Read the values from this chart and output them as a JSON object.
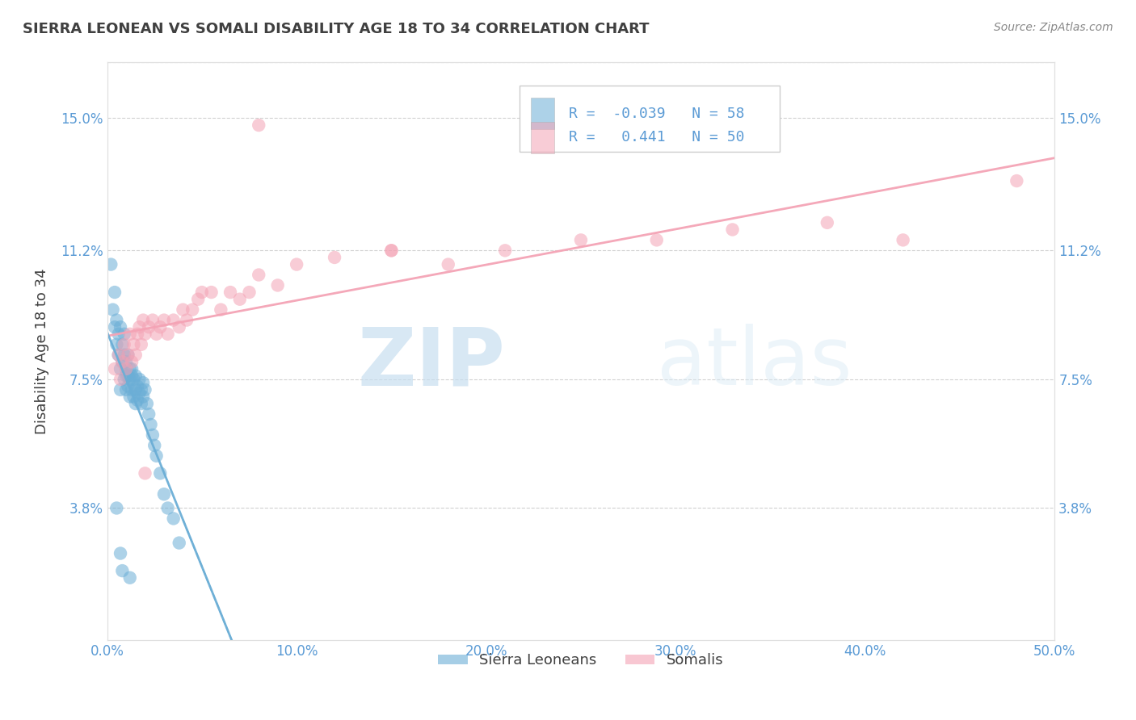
{
  "title": "SIERRA LEONEAN VS SOMALI DISABILITY AGE 18 TO 34 CORRELATION CHART",
  "source_text": "Source: ZipAtlas.com",
  "ylabel": "Disability Age 18 to 34",
  "xlim": [
    0.0,
    0.5
  ],
  "ylim": [
    0.0,
    0.166
  ],
  "xticks": [
    0.0,
    0.1,
    0.2,
    0.3,
    0.4,
    0.5
  ],
  "xticklabels": [
    "0.0%",
    "10.0%",
    "20.0%",
    "30.0%",
    "40.0%",
    "50.0%"
  ],
  "ytick_positions": [
    0.038,
    0.075,
    0.112,
    0.15
  ],
  "ytick_labels": [
    "3.8%",
    "7.5%",
    "11.2%",
    "15.0%"
  ],
  "sierra_R": -0.039,
  "sierra_N": 58,
  "somali_R": 0.441,
  "somali_N": 50,
  "sierra_color": "#6baed6",
  "somali_color": "#f4a3b5",
  "legend_label_sierra": "Sierra Leoneans",
  "legend_label_somali": "Somalis",
  "watermark_zip": "ZIP",
  "watermark_atlas": "atlas",
  "background_color": "#ffffff",
  "grid_color": "#cccccc",
  "title_color": "#404040",
  "axis_label_color": "#404040",
  "tick_label_color": "#5b9bd5",
  "sierra_x": [
    0.002,
    0.003,
    0.004,
    0.004,
    0.005,
    0.005,
    0.006,
    0.006,
    0.007,
    0.007,
    0.007,
    0.008,
    0.008,
    0.009,
    0.009,
    0.009,
    0.01,
    0.01,
    0.01,
    0.01,
    0.011,
    0.011,
    0.011,
    0.012,
    0.012,
    0.012,
    0.013,
    0.013,
    0.013,
    0.014,
    0.014,
    0.015,
    0.015,
    0.015,
    0.016,
    0.016,
    0.017,
    0.017,
    0.018,
    0.018,
    0.019,
    0.019,
    0.02,
    0.021,
    0.022,
    0.023,
    0.024,
    0.025,
    0.026,
    0.028,
    0.03,
    0.032,
    0.035,
    0.038,
    0.005,
    0.007,
    0.008,
    0.012
  ],
  "sierra_y": [
    0.108,
    0.095,
    0.1,
    0.09,
    0.092,
    0.085,
    0.088,
    0.082,
    0.09,
    0.078,
    0.072,
    0.085,
    0.08,
    0.088,
    0.082,
    0.075,
    0.08,
    0.076,
    0.072,
    0.078,
    0.076,
    0.082,
    0.073,
    0.078,
    0.075,
    0.07,
    0.076,
    0.072,
    0.078,
    0.075,
    0.07,
    0.076,
    0.072,
    0.068,
    0.073,
    0.069,
    0.071,
    0.075,
    0.072,
    0.068,
    0.07,
    0.074,
    0.072,
    0.068,
    0.065,
    0.062,
    0.059,
    0.056,
    0.053,
    0.048,
    0.042,
    0.038,
    0.035,
    0.028,
    0.038,
    0.025,
    0.02,
    0.018
  ],
  "somali_x": [
    0.004,
    0.006,
    0.007,
    0.008,
    0.009,
    0.01,
    0.011,
    0.012,
    0.013,
    0.014,
    0.015,
    0.016,
    0.017,
    0.018,
    0.019,
    0.02,
    0.022,
    0.024,
    0.026,
    0.028,
    0.03,
    0.032,
    0.035,
    0.038,
    0.04,
    0.042,
    0.045,
    0.048,
    0.05,
    0.055,
    0.06,
    0.065,
    0.07,
    0.075,
    0.08,
    0.09,
    0.1,
    0.12,
    0.15,
    0.18,
    0.21,
    0.25,
    0.29,
    0.33,
    0.38,
    0.15,
    0.08,
    0.42,
    0.02,
    0.48
  ],
  "somali_y": [
    0.078,
    0.082,
    0.075,
    0.08,
    0.085,
    0.078,
    0.082,
    0.088,
    0.08,
    0.085,
    0.082,
    0.088,
    0.09,
    0.085,
    0.092,
    0.088,
    0.09,
    0.092,
    0.088,
    0.09,
    0.092,
    0.088,
    0.092,
    0.09,
    0.095,
    0.092,
    0.095,
    0.098,
    0.1,
    0.1,
    0.095,
    0.1,
    0.098,
    0.1,
    0.105,
    0.102,
    0.108,
    0.11,
    0.112,
    0.108,
    0.112,
    0.115,
    0.115,
    0.118,
    0.12,
    0.112,
    0.148,
    0.115,
    0.048,
    0.132
  ]
}
